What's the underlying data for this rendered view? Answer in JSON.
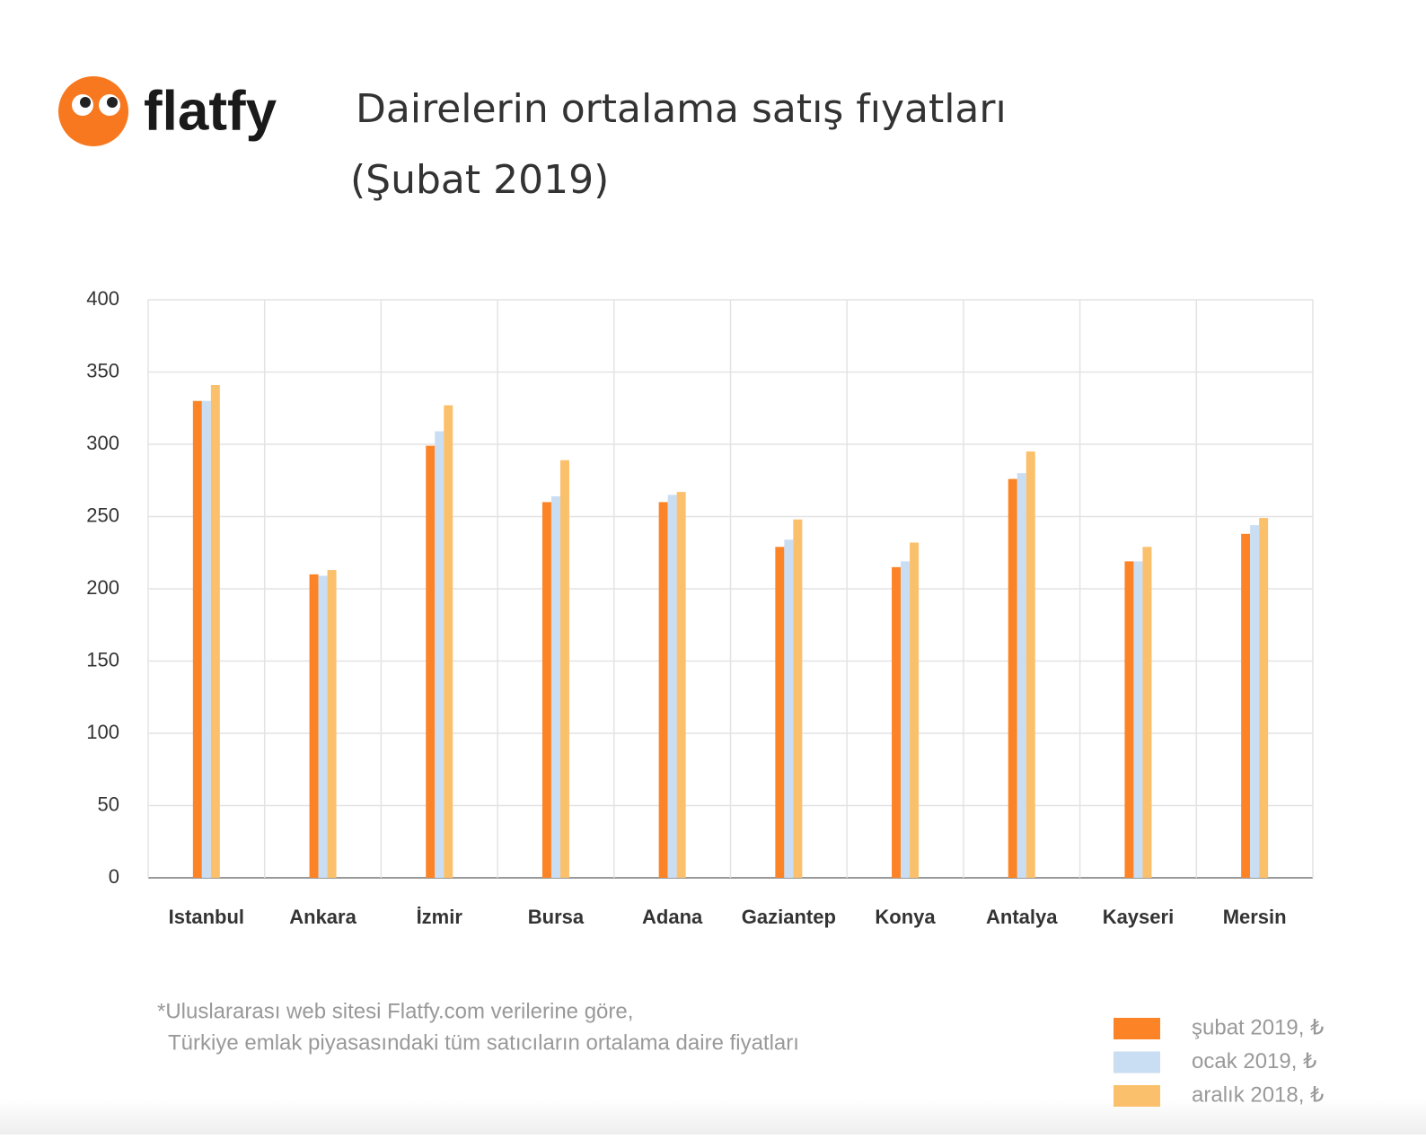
{
  "logo": "flatfy",
  "chart_data": {
    "type": "bar",
    "title": "Dairelerin ortalama satış fıyatları",
    "subtitle": "(Şubat 2019)",
    "categories": [
      "Istanbul",
      "Ankara",
      "İzmir",
      "Bursa",
      "Adana",
      "Gaziantep",
      "Konya",
      "Antalya",
      "Kayseri",
      "Mersin"
    ],
    "series": [
      {
        "name": "şubat 2019, ₺",
        "color": "#fc8427",
        "values": [
          330,
          210,
          299,
          260,
          260,
          229,
          215,
          276,
          219,
          238
        ]
      },
      {
        "name": "ocak 2019, ₺",
        "color": "#c9ddf3",
        "values": [
          330,
          209,
          309,
          264,
          265,
          234,
          219,
          280,
          219,
          244
        ]
      },
      {
        "name": "aralık 2018, ₺",
        "color": "#fbc06b",
        "values": [
          341,
          213,
          327,
          289,
          267,
          248,
          232,
          295,
          229,
          249
        ]
      }
    ],
    "ylim": [
      0,
      400
    ],
    "yticks": [
      0,
      50,
      100,
      150,
      200,
      250,
      300,
      350,
      400
    ],
    "grid": true,
    "footnote": [
      "*Uluslararası web sitesi Flatfy.com verilerine göre,",
      "Türkiye emlak piyasasındaki tüm satıcıların ortalama daire fiyatları"
    ]
  }
}
